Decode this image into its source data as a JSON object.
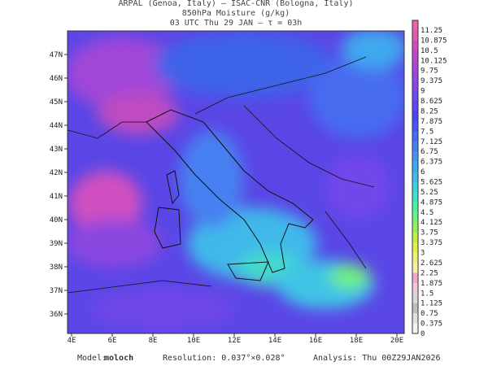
{
  "header": {
    "line1": "ARPAL (Genoa, Italy)  –  ISAC-CNR (Bologna, Italy)",
    "line2": "850hPa Moisture (g/kg)",
    "line3": "03 UTC Thu 29 JAN  –  τ = 03h"
  },
  "map": {
    "lat_labels": [
      "47N",
      "46N",
      "45N",
      "44N",
      "43N",
      "42N",
      "41N",
      "40N",
      "39N",
      "38N",
      "37N",
      "36N"
    ],
    "lon_labels": [
      "4E",
      "6E",
      "8E",
      "10E",
      "12E",
      "14E",
      "16E",
      "18E",
      "20E"
    ]
  },
  "colorbar": {
    "labels": [
      "11.25",
      "10.875",
      "10.5",
      "10.125",
      "9.75",
      "9.375",
      "9",
      "8.625",
      "8.25",
      "7.875",
      "7.5",
      "7.125",
      "6.75",
      "6.375",
      "6",
      "5.625",
      "5.25",
      "4.875",
      "4.5",
      "4.125",
      "3.75",
      "3.375",
      "3",
      "2.625",
      "2.25",
      "1.875",
      "1.5",
      "1.125",
      "0.75",
      "0.375",
      "0"
    ],
    "colors": [
      "#e05ab0",
      "#d24cbe",
      "#c046c8",
      "#ae46d2",
      "#9a46dc",
      "#8646e6",
      "#7246ea",
      "#5e46f0",
      "#4a46f0",
      "#4658f0",
      "#466cf0",
      "#4680f0",
      "#4694f0",
      "#40a8ee",
      "#40bce8",
      "#40d0e2",
      "#44e2c8",
      "#50f0a0",
      "#70f07c",
      "#96f064",
      "#bef050",
      "#e2f050",
      "#f2f07c",
      "#f8f0a8",
      "#f0a8cc",
      "#f0c8dc",
      "#d8d8d8",
      "#c0c0c0",
      "#e0e0e0",
      "#f4f4f4"
    ]
  },
  "footer": {
    "model_label": "Model:",
    "model": "moloch",
    "resolution": "Resolution: 0.037°×0.028°",
    "analysis": "Analysis: Thu 00Z29JAN2026"
  }
}
